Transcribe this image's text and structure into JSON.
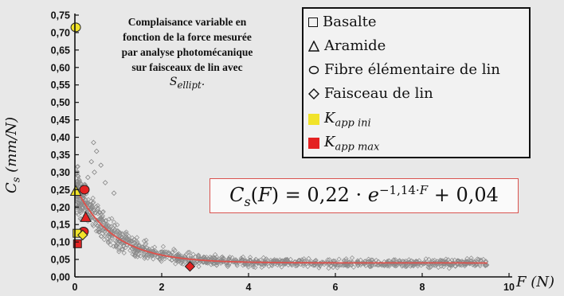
{
  "chart_data": {
    "type": "scatter",
    "title_lines": [
      "Complaisance variable en",
      "fonction de la force mesurée",
      "par analyse photomécanique",
      "sur faisceaux de lin avec",
      "S_ellipt."
    ],
    "xlabel": "F (N)",
    "ylabel": "C_s (mm/N)",
    "xlim": [
      0,
      10
    ],
    "ylim": [
      0,
      0.75
    ],
    "x_ticks": [
      "0",
      "2",
      "4",
      "6",
      "8",
      "10"
    ],
    "y_ticks": [
      "0,00",
      "0,05",
      "0,10",
      "0,15",
      "0,20",
      "0,25",
      "0,30",
      "0,35",
      "0,40",
      "0,45",
      "0,50",
      "0,55",
      "0,60",
      "0,65",
      "0,70",
      "0,75"
    ],
    "legend": {
      "position": "top-right",
      "entries": [
        {
          "label": "Basalte",
          "symbol": "square"
        },
        {
          "label": "Aramide",
          "symbol": "triangle"
        },
        {
          "label": "Fibre élémentaire de lin",
          "symbol": "circle"
        },
        {
          "label": "Faisceau de lin",
          "symbol": "diamond"
        },
        {
          "label": "K_app ini",
          "symbol": "filled-square",
          "color": "#f1e32a"
        },
        {
          "label": "K_app max",
          "symbol": "filled-square",
          "color": "#e42222"
        }
      ]
    },
    "fit": {
      "equation": "C_s(F) = 0,22 · e^(−1,14·F) + 0,04",
      "a": 0.22,
      "b": 1.14,
      "c": 0.04,
      "color": "#e0504a"
    },
    "highlight_points": [
      {
        "series": "Fibre élémentaire de lin",
        "kind": "K_app ini",
        "x": 0.02,
        "y": 0.715
      },
      {
        "series": "Aramide",
        "kind": "K_app ini",
        "x": 0.02,
        "y": 0.245
      },
      {
        "series": "Fibre élémentaire de lin",
        "kind": "K_app max",
        "x": 0.22,
        "y": 0.25
      },
      {
        "series": "Aramide",
        "kind": "K_app max",
        "x": 0.25,
        "y": 0.17
      },
      {
        "series": "Fibre élémentaire de lin",
        "kind": "K_app max",
        "x": 0.2,
        "y": 0.13
      },
      {
        "series": "Basalte",
        "kind": "K_app ini",
        "x": 0.05,
        "y": 0.125
      },
      {
        "series": "Faisceau de lin",
        "kind": "K_app ini",
        "x": 0.18,
        "y": 0.12
      },
      {
        "series": "Basalte",
        "kind": "K_app max",
        "x": 0.06,
        "y": 0.095
      },
      {
        "series": "Faisceau de lin",
        "kind": "K_app max",
        "x": 2.65,
        "y": 0.03
      }
    ],
    "scatter_series": {
      "name": "Faisceau de lin",
      "x_range": [
        0.05,
        9.5
      ],
      "trend": "follows fit with noise; sparse high outliers up to 0.38 near F=0.4",
      "outliers": [
        {
          "x": 0.43,
          "y": 0.385
        },
        {
          "x": 0.5,
          "y": 0.36
        },
        {
          "x": 0.38,
          "y": 0.33
        },
        {
          "x": 0.6,
          "y": 0.32
        },
        {
          "x": 0.45,
          "y": 0.3
        },
        {
          "x": 0.3,
          "y": 0.285
        },
        {
          "x": 0.7,
          "y": 0.27
        },
        {
          "x": 0.9,
          "y": 0.24
        }
      ]
    }
  }
}
